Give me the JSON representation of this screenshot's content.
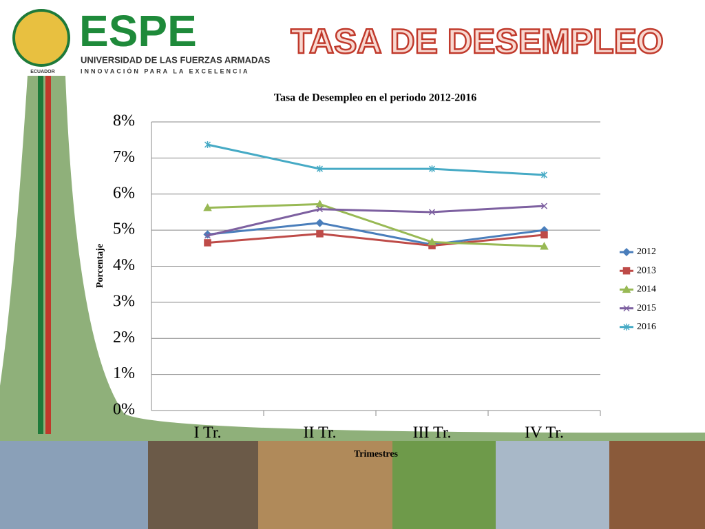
{
  "header": {
    "logo": "ESPE",
    "university": "UNIVERSIDAD DE LAS FUERZAS ARMADAS",
    "motto": "INNOVACIÓN PARA LA EXCELENCIA",
    "country": "ECUADOR",
    "title": "TASA DE DESEMPLEO"
  },
  "chart_data": {
    "type": "line",
    "title": "Tasa de Desempleo en el  periodo 2012-2016",
    "x_label": "Trimestres",
    "y_label": "Porcentaje",
    "categories": [
      "I Tr.",
      "II Tr.",
      "III Tr.",
      "IV Tr."
    ],
    "ylim": [
      0,
      8
    ],
    "yticks": [
      {
        "value": 0,
        "label": "0%"
      },
      {
        "value": 1,
        "label": "1%"
      },
      {
        "value": 2,
        "label": "2%"
      },
      {
        "value": 3,
        "label": "3%"
      },
      {
        "value": 4,
        "label": "4%"
      },
      {
        "value": 5,
        "label": "5%"
      },
      {
        "value": 6,
        "label": "6%"
      },
      {
        "value": 7,
        "label": "7%"
      },
      {
        "value": 8,
        "label": "8%"
      }
    ],
    "grid": true,
    "legend": "right",
    "series": [
      {
        "name": "2012",
        "color": "#4a7ebb",
        "marker": "diamond",
        "values": [
          4.88,
          5.2,
          4.6,
          5.0
        ]
      },
      {
        "name": "2013",
        "color": "#be4b48",
        "marker": "square",
        "values": [
          4.65,
          4.9,
          4.57,
          4.87
        ]
      },
      {
        "name": "2014",
        "color": "#98b954",
        "marker": "triangle",
        "values": [
          5.62,
          5.72,
          4.67,
          4.55
        ]
      },
      {
        "name": "2015",
        "color": "#7d60a0",
        "marker": "x",
        "values": [
          4.85,
          5.58,
          5.5,
          5.67
        ]
      },
      {
        "name": "2016",
        "color": "#46aac5",
        "marker": "star",
        "values": [
          7.37,
          6.7,
          6.7,
          6.53
        ]
      }
    ]
  }
}
